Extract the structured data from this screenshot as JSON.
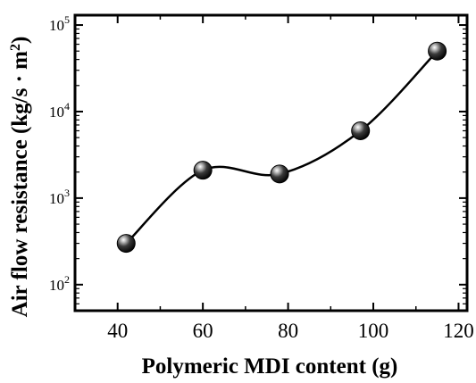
{
  "chart_data": {
    "type": "scatter",
    "xlabel": "Polymeric MDI content (g)",
    "ylabel": "Air flow resistance (kg/s · m²)",
    "ylabel_main": "Air flow resistance (kg/s · m",
    "ylabel_sup": "2",
    "ylabel_end": ")",
    "xlim": [
      30,
      122
    ],
    "ylim": [
      50,
      130000
    ],
    "yscale": "log",
    "x_ticks": [
      40,
      60,
      80,
      100,
      120
    ],
    "x_tick_labels": [
      "40",
      "60",
      "80",
      "100",
      "120"
    ],
    "y_ticks": [
      {
        "base": "10",
        "exp": "2",
        "value": 100
      },
      {
        "base": "10",
        "exp": "3",
        "value": 1000
      },
      {
        "base": "10",
        "exp": "4",
        "value": 10000
      },
      {
        "base": "10",
        "exp": "5",
        "value": 100000
      }
    ],
    "series": [
      {
        "x": [
          42,
          60,
          78,
          97,
          115
        ],
        "y": [
          300,
          2100,
          1900,
          6000,
          50000
        ],
        "marker": "sphere",
        "color": "#000000",
        "line": "smooth"
      }
    ],
    "grid": false,
    "legend": "none"
  }
}
